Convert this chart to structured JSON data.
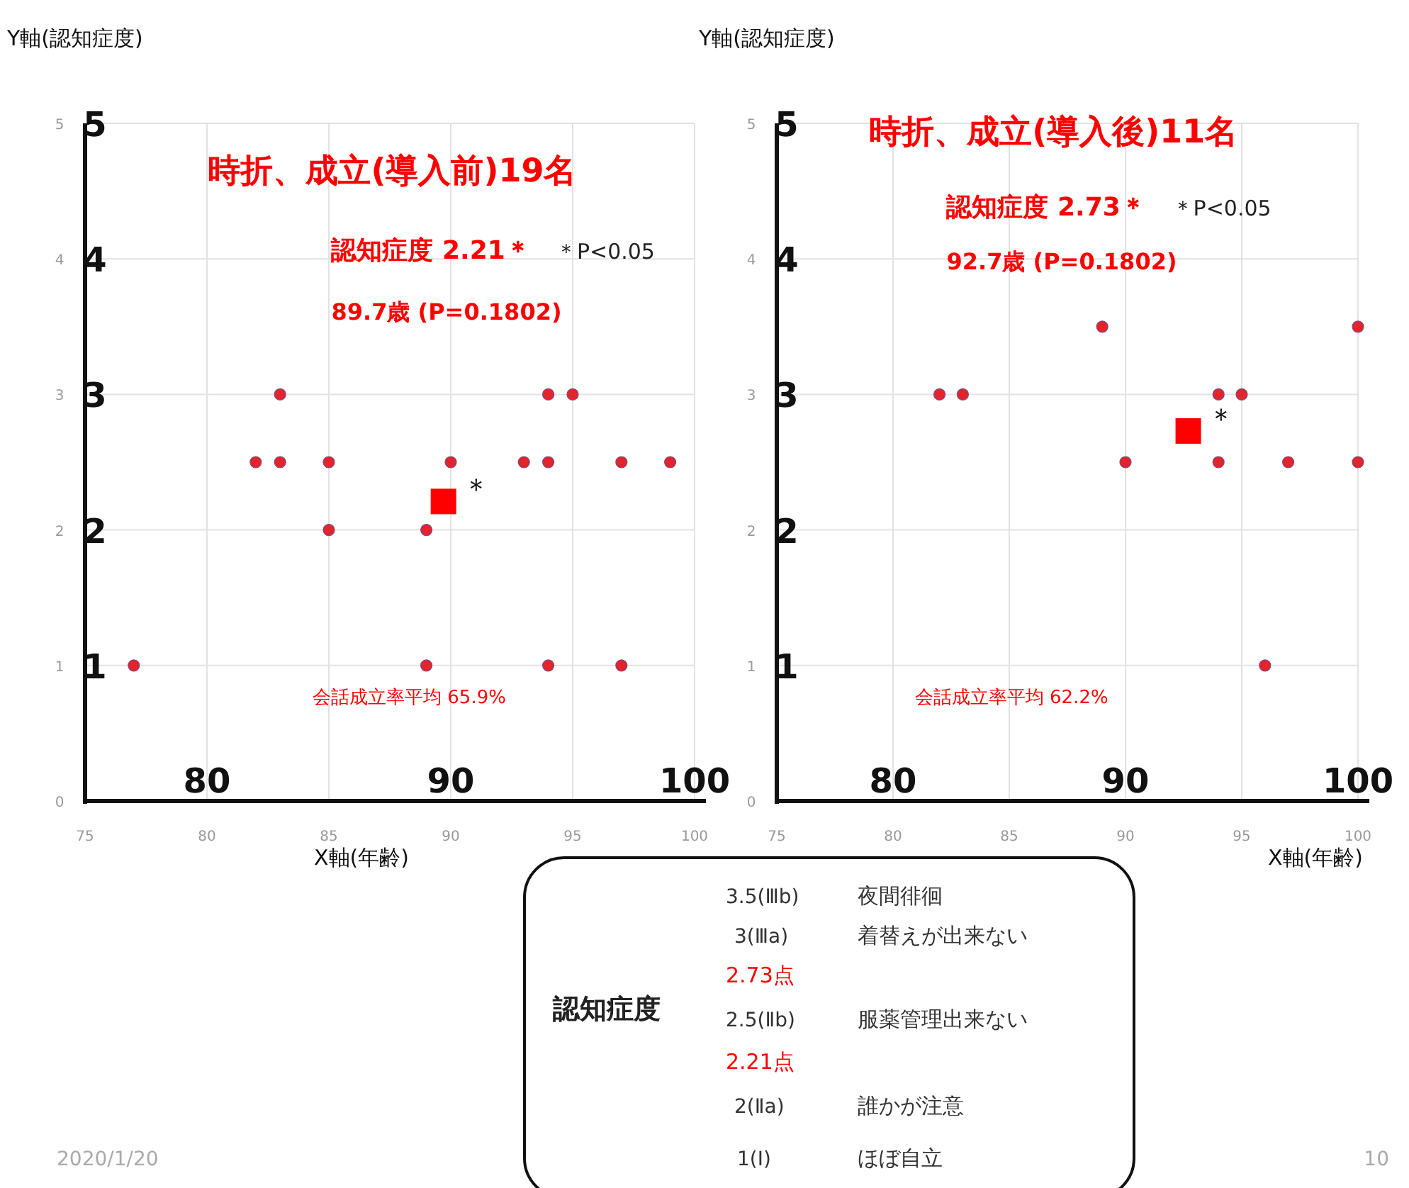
{
  "chart_data": [
    {
      "type": "scatter",
      "ylabel": "Y軸(認知症度)",
      "xlabel": "X軸(年齢)",
      "xlim": [
        75,
        100
      ],
      "xticks": [
        75,
        80,
        85,
        90,
        95,
        100
      ],
      "ylim": [
        0,
        5
      ],
      "yticks": [
        0,
        1,
        2,
        3,
        4,
        5
      ],
      "x2lim": [
        75,
        100
      ],
      "x2ticks": [
        80,
        90,
        100
      ],
      "y2lim": [
        0,
        5
      ],
      "y2ticks": [
        1,
        2,
        3,
        4,
        5
      ],
      "grid": true,
      "series": [
        {
          "color": "#e3242b",
          "marker": "circle",
          "x": [
            77,
            89,
            94,
            97,
            85,
            89,
            82,
            83,
            85,
            90,
            93,
            94,
            97,
            99,
            83,
            94,
            95
          ],
          "values": [
            1,
            1,
            1,
            1,
            2,
            2,
            2.5,
            2.5,
            2.5,
            2.5,
            2.5,
            2.5,
            2.5,
            2.5,
            3,
            3,
            3
          ]
        },
        {
          "color": "#ff0000",
          "marker": "square",
          "x": [
            89.7
          ],
          "values": [
            2.21
          ]
        }
      ],
      "annotations": [
        "時折、成立(導入前)19名",
        "認知症度 2.21＊",
        "＊P<0.05",
        "89.7歳 (P=0.1802)",
        "会話成立率平均 65.9%",
        {
          "text": "＊",
          "x": 89.7,
          "y": 2.21
        }
      ]
    },
    {
      "type": "scatter",
      "ylabel": "Y軸(認知症度)",
      "xlabel": "X軸(年齢)",
      "xlim": [
        75,
        100
      ],
      "xticks": [
        75,
        80,
        85,
        90,
        95,
        100
      ],
      "ylim": [
        0,
        5
      ],
      "yticks": [
        0,
        1,
        2,
        3,
        4,
        5
      ],
      "x2lim": [
        75,
        100
      ],
      "x2ticks": [
        80,
        90,
        100
      ],
      "y2lim": [
        0,
        5
      ],
      "y2ticks": [
        1,
        2,
        3,
        4,
        5
      ],
      "grid": true,
      "series": [
        {
          "color": "#e3242b",
          "marker": "circle",
          "x": [
            96,
            90,
            94,
            97,
            100,
            82,
            83,
            94,
            95,
            89,
            100
          ],
          "values": [
            1,
            2.5,
            2.5,
            2.5,
            2.5,
            3,
            3,
            3,
            3,
            3.5,
            3.5
          ]
        },
        {
          "color": "#ff0000",
          "marker": "square",
          "x": [
            92.7
          ],
          "values": [
            2.73
          ]
        }
      ],
      "annotations": [
        "時折、成立(導入後)11名",
        "認知症度 2.73＊",
        "＊P<0.05",
        "92.7歳 (P=0.1802)",
        "会話成立率平均 62.2%",
        {
          "text": "＊",
          "x": 92.7,
          "y": 2.73
        }
      ]
    },
    {
      "type": "other",
      "title": "認知症度",
      "annotations": [
        "3.5(Ⅲb)",
        "夜間徘徊",
        "3(Ⅲa)",
        "着替えが出来ない",
        "2.73点",
        "2.5(Ⅱb)",
        "服薬管理出来ない",
        "2.21点",
        "2(Ⅱa)",
        "誰かが注意",
        "1(Ⅰ)",
        "ほぼ自立",
        "2020/1/20",
        "10"
      ]
    }
  ]
}
